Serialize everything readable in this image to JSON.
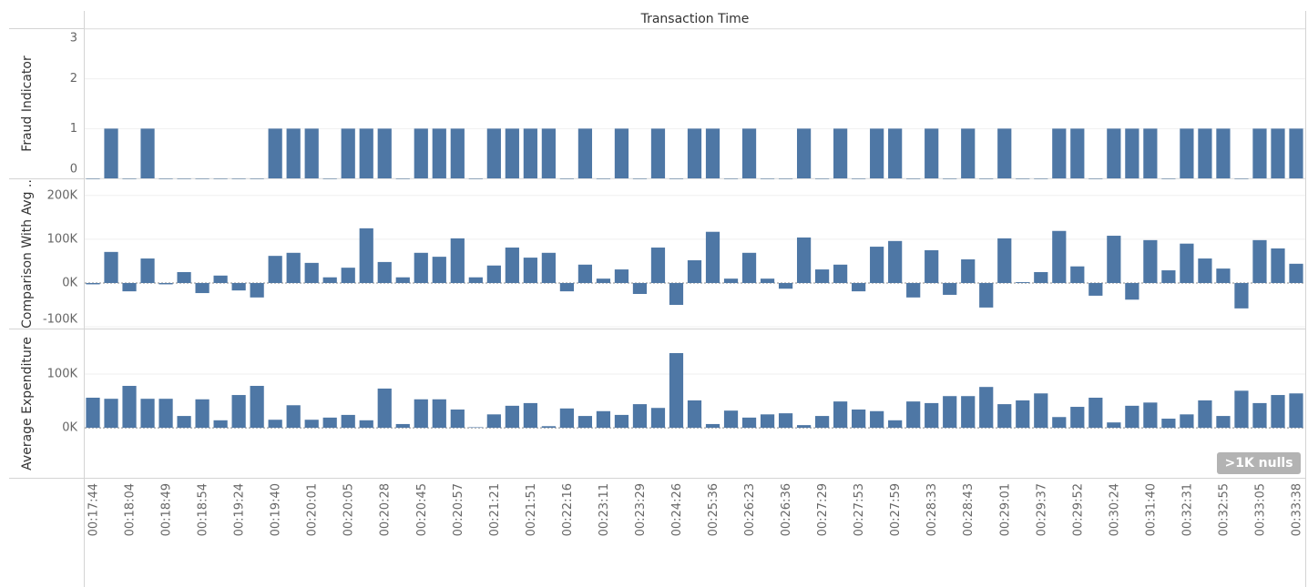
{
  "chart_data": {
    "type": "bar",
    "title": "Transaction Time",
    "color": "#4e77a5",
    "grid": true,
    "annotation": ">1K nulls",
    "categories": [
      "00:17:44",
      null,
      "00:18:04",
      null,
      "00:18:49",
      null,
      "00:18:54",
      null,
      "00:19:24",
      null,
      "00:19:40",
      null,
      "00:20:01",
      null,
      "00:20:05",
      null,
      "00:20:28",
      null,
      "00:20:45",
      null,
      "00:20:57",
      null,
      "00:21:21",
      null,
      "00:21:51",
      null,
      "00:22:16",
      null,
      "00:23:11",
      null,
      "00:23:29",
      null,
      "00:24:26",
      null,
      "00:25:36",
      null,
      "00:26:23",
      null,
      "00:26:36",
      null,
      "00:27:29",
      null,
      "00:27:53",
      null,
      "00:27:59",
      null,
      "00:28:33",
      null,
      "00:28:43",
      null,
      "00:29:01",
      null,
      "00:29:37",
      null,
      "00:29:52",
      null,
      "00:30:24",
      null,
      "00:31:40",
      null,
      "00:32:31",
      null,
      "00:32:55",
      null,
      "00:33:05",
      null,
      "00:33:38"
    ],
    "panes": [
      {
        "axis_label": "Fraud Indicator",
        "ylim": [
          0,
          3
        ],
        "yticks": [
          0,
          1,
          2,
          3
        ],
        "values": [
          0,
          1,
          0,
          1,
          0,
          0,
          0,
          0,
          0,
          0,
          1,
          1,
          1,
          0,
          1,
          1,
          1,
          0,
          1,
          1,
          1,
          0,
          1,
          1,
          1,
          1,
          0,
          1,
          0,
          1,
          0,
          1,
          0,
          1,
          1,
          0,
          1,
          0,
          0,
          1,
          0,
          1,
          0,
          1,
          1,
          0,
          1,
          0,
          1,
          0,
          1,
          0,
          0,
          1,
          1,
          0,
          1,
          1,
          1,
          0,
          1,
          1,
          1,
          0,
          1,
          1,
          1
        ]
      },
      {
        "axis_label": "Comparison With Avg ..",
        "ylim": [
          -104000,
          237000
        ],
        "yticks": [
          {
            "value": -100000,
            "label": "-100K"
          },
          {
            "value": 0,
            "label": "0K"
          },
          {
            "value": 100000,
            "label": "100K"
          },
          {
            "value": 200000,
            "label": "200K"
          }
        ],
        "values": [
          -3000,
          71000,
          -19000,
          56000,
          -3000,
          25000,
          -23000,
          17000,
          -17000,
          -33000,
          62000,
          69000,
          46000,
          13000,
          35000,
          125000,
          48000,
          13000,
          69000,
          60000,
          102000,
          13000,
          40000,
          81000,
          58000,
          69000,
          -19000,
          42000,
          10000,
          31000,
          -25000,
          81000,
          -50000,
          52000,
          117000,
          10000,
          69000,
          10000,
          -13000,
          104000,
          31000,
          42000,
          -19000,
          83000,
          96000,
          -33000,
          75000,
          -27000,
          54000,
          -56000,
          102000,
          2000,
          25000,
          119000,
          38000,
          -29000,
          108000,
          -38000,
          98000,
          29000,
          90000,
          56000,
          33000,
          -58000,
          98000,
          79000,
          44000
        ]
      },
      {
        "axis_label": "Average Expenditure",
        "ylim": [
          -93000,
          183000
        ],
        "yticks": [
          {
            "value": 0,
            "label": "0K"
          },
          {
            "value": 100000,
            "label": "100K"
          }
        ],
        "values": [
          56000,
          54000,
          78000,
          54000,
          54000,
          22000,
          53000,
          14000,
          61000,
          78000,
          15000,
          42000,
          15000,
          19000,
          24000,
          14000,
          73000,
          7000,
          53000,
          53000,
          34000,
          1000,
          25000,
          41000,
          46000,
          3000,
          36000,
          22000,
          31000,
          24000,
          44000,
          37000,
          139000,
          51000,
          7000,
          32000,
          19000,
          25000,
          27000,
          5000,
          22000,
          49000,
          34000,
          31000,
          14000,
          49000,
          46000,
          59000,
          59000,
          76000,
          44000,
          51000,
          64000,
          20000,
          39000,
          56000,
          10000,
          41000,
          47000,
          17000,
          25000,
          51000,
          22000,
          69000,
          46000,
          61000,
          64000
        ]
      }
    ]
  }
}
